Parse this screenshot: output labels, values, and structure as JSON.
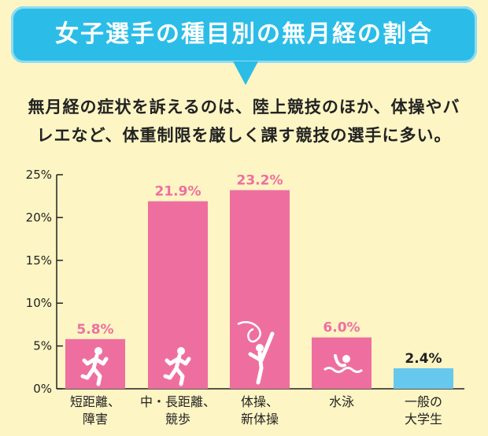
{
  "header": {
    "title": "女子選手の種目別の無月経の割合",
    "subtitle_line1": "無月経の症状を訴えるのは、陸上競技のほか、体操やバ",
    "subtitle_line2": "レエなど、体重制限を厳しく課す競技の選手に多い。"
  },
  "colors": {
    "banner": "#2bbde7",
    "bar_pink": "#ee6f9f",
    "bar_blue": "#67c8ee",
    "label_pink": "#ee6f9f",
    "label_dark": "#222222",
    "background": "#fdf5c4"
  },
  "chart_data": {
    "type": "bar",
    "categories": [
      [
        "短距離、",
        "障害"
      ],
      [
        "中・長距離、",
        "競歩"
      ],
      [
        "体操、",
        "新体操"
      ],
      [
        "水泳"
      ],
      [
        "一般の",
        "大学生"
      ]
    ],
    "values": [
      5.8,
      21.9,
      23.2,
      6.0,
      2.4
    ],
    "value_labels": [
      "5.8%",
      "21.9%",
      "23.2%",
      "6.0%",
      "2.4%"
    ],
    "bar_icons": [
      "runner-icon",
      "distance-runner-icon",
      "gymnast-ribbon-icon",
      "swimmer-icon",
      ""
    ],
    "ylim": [
      0,
      25
    ],
    "yticks": [
      0,
      5,
      10,
      15,
      20,
      25
    ],
    "ytick_labels": [
      "0%",
      "5%",
      "10%",
      "15%",
      "20%",
      "25%"
    ],
    "grid": false
  }
}
